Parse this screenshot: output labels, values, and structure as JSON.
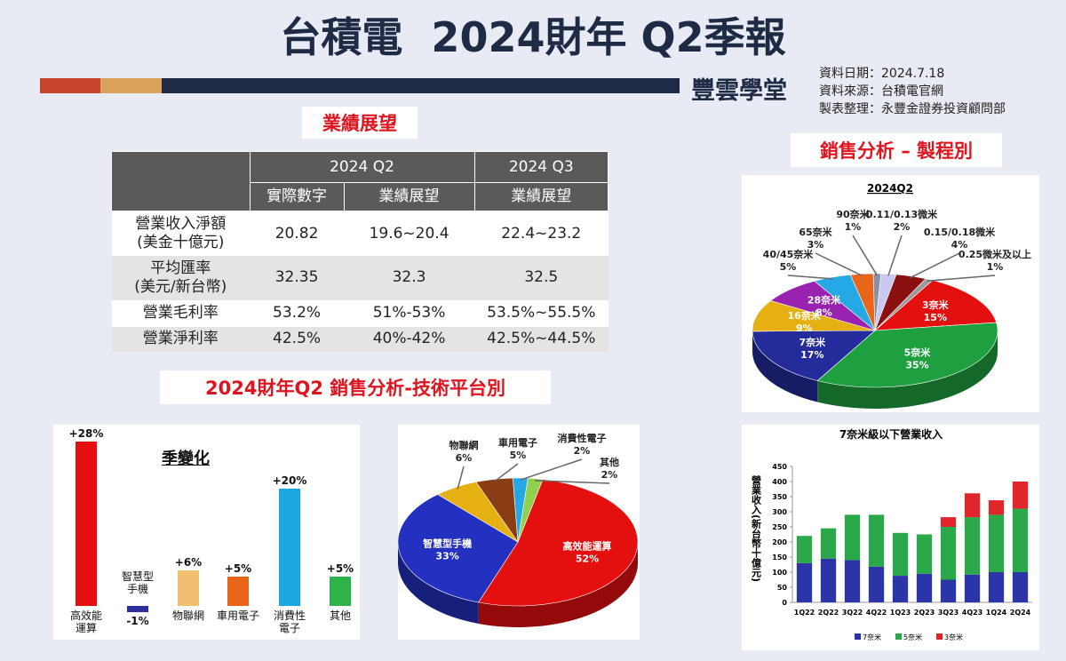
{
  "header": {
    "title": "台積電  2024財年 Q2季報",
    "logo": "豐雲學堂",
    "info": [
      "資料日期：2024.7.18",
      "資料來源：台積電官網",
      "製表整理：永豐金證券投資顧問部"
    ]
  },
  "sections": {
    "outlook": "業績展望",
    "process": "銷售分析 – 製程別",
    "platform": "2024財年Q2 銷售分析-技術平台別"
  },
  "table": {
    "header": [
      "2024 Q2",
      "2024 Q3"
    ],
    "subheader": [
      "實際數字",
      "業績展望",
      "業績展望"
    ],
    "rows": [
      [
        "營業收入淨額\n(美金十億元)",
        "20.82",
        "19.6~20.4",
        "22.4~23.2"
      ],
      [
        "平均匯率\n(美元/新台幣)",
        "32.35",
        "32.3",
        "32.5"
      ],
      [
        "營業毛利率",
        "53.2%",
        "51%-53%",
        "53.5%~55.5%"
      ],
      [
        "營業淨利率",
        "42.5%",
        "40%-42%",
        "42.5%~44.5%"
      ]
    ]
  },
  "chart_data": [
    {
      "type": "bar",
      "title": "季變化",
      "categories": [
        "高效能\n運算",
        "智慧型\n手機",
        "物聯網",
        "車用電子",
        "消費性\n電子",
        "其他"
      ],
      "values": [
        28,
        -1,
        6,
        5,
        20,
        5
      ],
      "value_labels": [
        "+28%",
        "-1%",
        "+6%",
        "+5%",
        "+20%",
        "+5%"
      ],
      "colors": [
        "#e3100f",
        "#2b2e9c",
        "#f0c070",
        "#e8651a",
        "#1ba8e0",
        "#2db34a"
      ]
    },
    {
      "type": "pie",
      "categories": [
        "高效能運算",
        "智慧型手機",
        "物聯網",
        "車用電子",
        "消費性電子",
        "其他"
      ],
      "values": [
        52,
        33,
        6,
        5,
        2,
        2
      ],
      "value_labels": [
        "52%",
        "33%",
        "6%",
        "5%",
        "2%",
        "2%"
      ],
      "colors": [
        "#e3100f",
        "#2430c0",
        "#e6b012",
        "#8a3d12",
        "#24a8e6",
        "#8fd14f"
      ]
    },
    {
      "type": "pie",
      "title": "2024Q2",
      "categories": [
        "3奈米",
        "5奈米",
        "7奈米",
        "16奈米",
        "28奈米",
        "40/45奈米",
        "65奈米",
        "90奈米",
        "0.11/0.13微米",
        "0.15/0.18微米",
        "0.25微米及以上"
      ],
      "values": [
        15,
        35,
        17,
        9,
        8,
        5,
        3,
        1,
        2,
        4,
        1
      ],
      "value_labels": [
        "15%",
        "35%",
        "17%",
        "9%",
        "8%",
        "5%",
        "3%",
        "1%",
        "2%",
        "4%",
        "1%"
      ],
      "colors": [
        "#e3100f",
        "#1ea040",
        "#232c9a",
        "#e6b012",
        "#9a22b0",
        "#24a8e6",
        "#e8651a",
        "#8a8fa8",
        "#c8c8f0",
        "#8a1010",
        "#9a9a9a"
      ]
    },
    {
      "type": "stacked_bar",
      "title": "7奈米級以下營業收入",
      "y_label": "營業收入(新台幣十億元)",
      "categories": [
        "1Q22",
        "2Q22",
        "3Q22",
        "4Q22",
        "1Q23",
        "2Q23",
        "3Q23",
        "4Q23",
        "1Q24",
        "2Q24"
      ],
      "series": [
        {
          "name": "7奈米",
          "color": "#2b35a8",
          "values": [
            130,
            145,
            140,
            118,
            88,
            95,
            75,
            92,
            100,
            100
          ]
        },
        {
          "name": "5奈米",
          "color": "#2aa84a",
          "values": [
            90,
            100,
            150,
            172,
            142,
            130,
            175,
            190,
            190,
            210
          ]
        },
        {
          "name": "3奈米",
          "color": "#e0262b",
          "values": [
            0,
            0,
            0,
            0,
            0,
            0,
            32,
            79,
            48,
            90
          ]
        }
      ],
      "ylim": [
        0,
        450
      ],
      "yticks": [
        0,
        50,
        100,
        150,
        200,
        250,
        300,
        350,
        400,
        450
      ],
      "legend": "bottom"
    }
  ]
}
